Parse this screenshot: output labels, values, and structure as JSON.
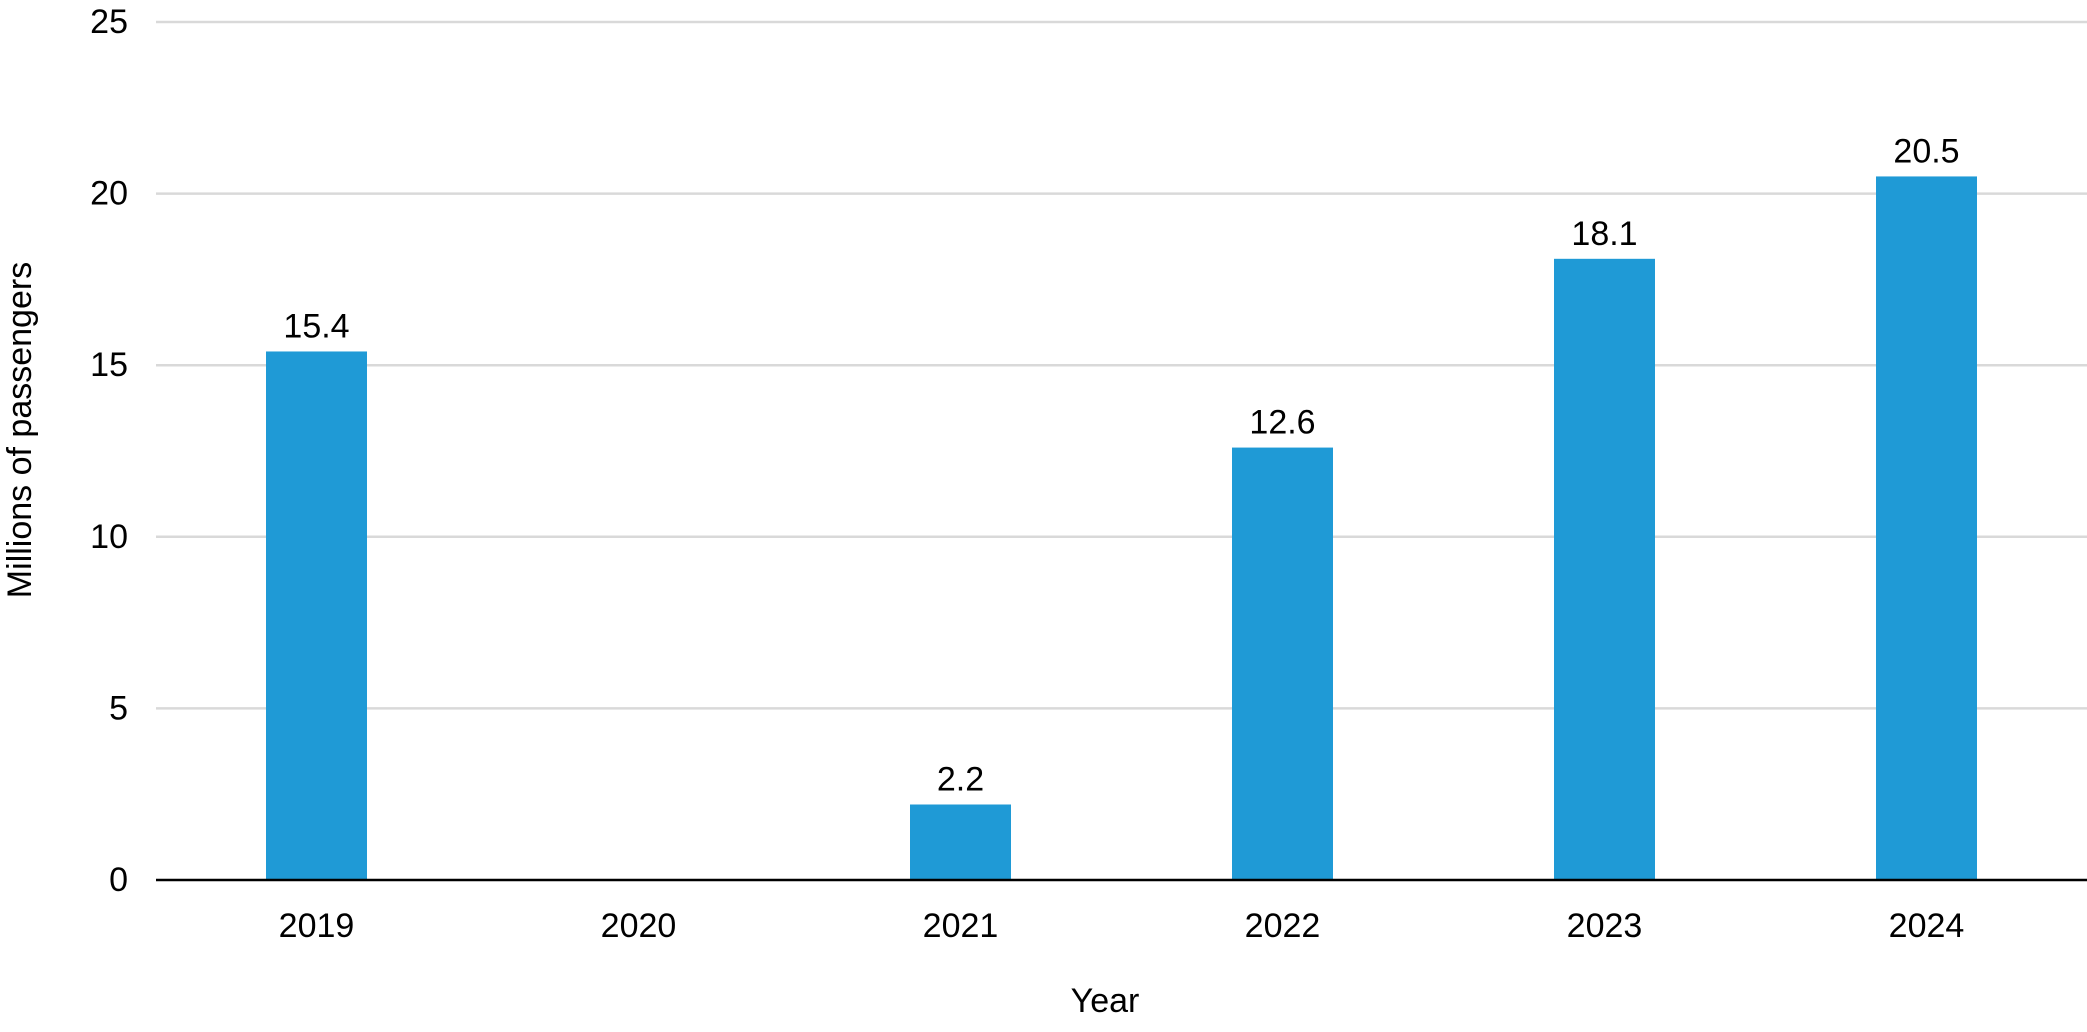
{
  "chart_data": {
    "type": "bar",
    "title": "",
    "xlabel": "Year",
    "ylabel": "Millions of passengers",
    "categories": [
      "2019",
      "2020",
      "2021",
      "2022",
      "2023",
      "2024"
    ],
    "values": [
      15.4,
      null,
      2.2,
      12.6,
      18.1,
      20.5
    ],
    "value_labels": [
      "15.4",
      "",
      "2.2",
      "12.6",
      "18.1",
      "20.5"
    ],
    "ylim": [
      0,
      25
    ],
    "yticks": [
      0,
      5,
      10,
      15,
      20,
      25
    ],
    "ytick_labels": [
      "0",
      "5",
      "10",
      "15",
      "20",
      "25"
    ],
    "grid": true,
    "legend": "none",
    "colors": {
      "bar": "#1f9ad6",
      "grid": "#d9d9d9",
      "axis": "#000000",
      "text": "#000000"
    }
  }
}
